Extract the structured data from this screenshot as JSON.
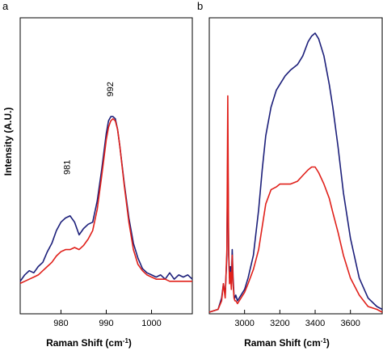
{
  "colors": {
    "series_blue": "#1c1f7a",
    "series_red": "#e0201a",
    "axis": "#000000"
  },
  "chart_data": [
    {
      "type": "line",
      "panel_label": "a",
      "xlabel": "Raman Shift (cm",
      "xlabel_sup": "-1",
      "xlabel_end": ")",
      "ylabel": "Intensity (A.U.)",
      "xlim": [
        971,
        1009
      ],
      "ylim": [
        0,
        1
      ],
      "xticks": [
        980,
        990,
        1000
      ],
      "xtick_labels": [
        "980",
        "990",
        "1000"
      ],
      "annotations": [
        {
          "text": "981",
          "x": 982,
          "y": 0.56,
          "rotate": -90
        },
        {
          "text": "992",
          "x": 991.5,
          "y": 0.93,
          "rotate": -90
        }
      ],
      "series": [
        {
          "color": "blue",
          "x": [
            971,
            972,
            973,
            974,
            975,
            976,
            977,
            978,
            979,
            980,
            981,
            982,
            983,
            984,
            985,
            986,
            987,
            988,
            989,
            990,
            990.5,
            991,
            991.5,
            992,
            992.5,
            993,
            994,
            995,
            996,
            997,
            998,
            999,
            1000,
            1001,
            1002,
            1003,
            1004,
            1005,
            1006,
            1007,
            1008,
            1009
          ],
          "y": [
            0.02,
            0.05,
            0.07,
            0.06,
            0.09,
            0.11,
            0.16,
            0.2,
            0.26,
            0.3,
            0.32,
            0.33,
            0.3,
            0.24,
            0.27,
            0.29,
            0.3,
            0.4,
            0.55,
            0.72,
            0.78,
            0.8,
            0.8,
            0.79,
            0.74,
            0.66,
            0.48,
            0.32,
            0.2,
            0.13,
            0.08,
            0.06,
            0.05,
            0.04,
            0.05,
            0.03,
            0.06,
            0.03,
            0.05,
            0.04,
            0.05,
            0.03
          ]
        },
        {
          "color": "red",
          "x": [
            971,
            972,
            973,
            974,
            975,
            976,
            977,
            978,
            979,
            980,
            981,
            982,
            983,
            984,
            985,
            986,
            987,
            988,
            989,
            990,
            990.5,
            991,
            991.5,
            992,
            992.5,
            993,
            994,
            995,
            996,
            997,
            998,
            999,
            1000,
            1001,
            1002,
            1003,
            1004,
            1005,
            1006,
            1007,
            1008,
            1009
          ],
          "y": [
            0.01,
            0.02,
            0.03,
            0.04,
            0.05,
            0.07,
            0.09,
            0.11,
            0.14,
            0.16,
            0.17,
            0.17,
            0.18,
            0.17,
            0.19,
            0.22,
            0.26,
            0.36,
            0.52,
            0.69,
            0.75,
            0.78,
            0.79,
            0.78,
            0.74,
            0.66,
            0.47,
            0.3,
            0.17,
            0.1,
            0.07,
            0.05,
            0.04,
            0.03,
            0.03,
            0.03,
            0.02,
            0.02,
            0.02,
            0.02,
            0.02,
            0.02
          ]
        }
      ]
    },
    {
      "type": "line",
      "panel_label": "b",
      "xlabel": "Raman Shift (cm",
      "xlabel_sup": "-1",
      "xlabel_end": ")",
      "ylabel": "",
      "xlim": [
        2800,
        3780
      ],
      "ylim": [
        0,
        1
      ],
      "xticks": [
        3000,
        3200,
        3400,
        3600
      ],
      "xtick_labels": [
        "3000",
        "3200",
        "3400",
        "3600"
      ],
      "annotations": [],
      "series": [
        {
          "color": "blue",
          "x": [
            2800,
            2850,
            2870,
            2880,
            2890,
            2900,
            2905,
            2910,
            2915,
            2920,
            2925,
            2930,
            2935,
            2940,
            2945,
            2950,
            2960,
            2980,
            3000,
            3020,
            3050,
            3080,
            3100,
            3120,
            3150,
            3180,
            3200,
            3230,
            3260,
            3300,
            3330,
            3360,
            3380,
            3400,
            3420,
            3450,
            3480,
            3500,
            3530,
            3560,
            3600,
            3650,
            3700,
            3750,
            3780
          ],
          "y": [
            0.0,
            0.01,
            0.05,
            0.1,
            0.06,
            0.2,
            0.58,
            0.2,
            0.12,
            0.16,
            0.1,
            0.22,
            0.12,
            0.06,
            0.05,
            0.06,
            0.04,
            0.06,
            0.08,
            0.12,
            0.2,
            0.36,
            0.5,
            0.62,
            0.72,
            0.78,
            0.8,
            0.83,
            0.85,
            0.87,
            0.9,
            0.95,
            0.97,
            0.98,
            0.96,
            0.9,
            0.8,
            0.72,
            0.58,
            0.42,
            0.26,
            0.12,
            0.05,
            0.02,
            0.01
          ]
        },
        {
          "color": "red",
          "x": [
            2800,
            2850,
            2870,
            2880,
            2890,
            2900,
            2905,
            2910,
            2915,
            2920,
            2925,
            2930,
            2935,
            2940,
            2945,
            2950,
            2960,
            2980,
            3000,
            3020,
            3050,
            3080,
            3100,
            3120,
            3150,
            3180,
            3200,
            3230,
            3260,
            3300,
            3330,
            3360,
            3380,
            3400,
            3420,
            3450,
            3480,
            3500,
            3530,
            3560,
            3600,
            3650,
            3700,
            3750,
            3780
          ],
          "y": [
            0.0,
            0.01,
            0.04,
            0.1,
            0.05,
            0.22,
            0.76,
            0.22,
            0.1,
            0.14,
            0.08,
            0.2,
            0.1,
            0.05,
            0.04,
            0.04,
            0.03,
            0.05,
            0.07,
            0.1,
            0.15,
            0.22,
            0.3,
            0.38,
            0.43,
            0.44,
            0.45,
            0.45,
            0.45,
            0.46,
            0.48,
            0.5,
            0.51,
            0.51,
            0.49,
            0.45,
            0.4,
            0.35,
            0.28,
            0.2,
            0.12,
            0.06,
            0.02,
            0.01,
            0.0
          ]
        }
      ]
    }
  ]
}
